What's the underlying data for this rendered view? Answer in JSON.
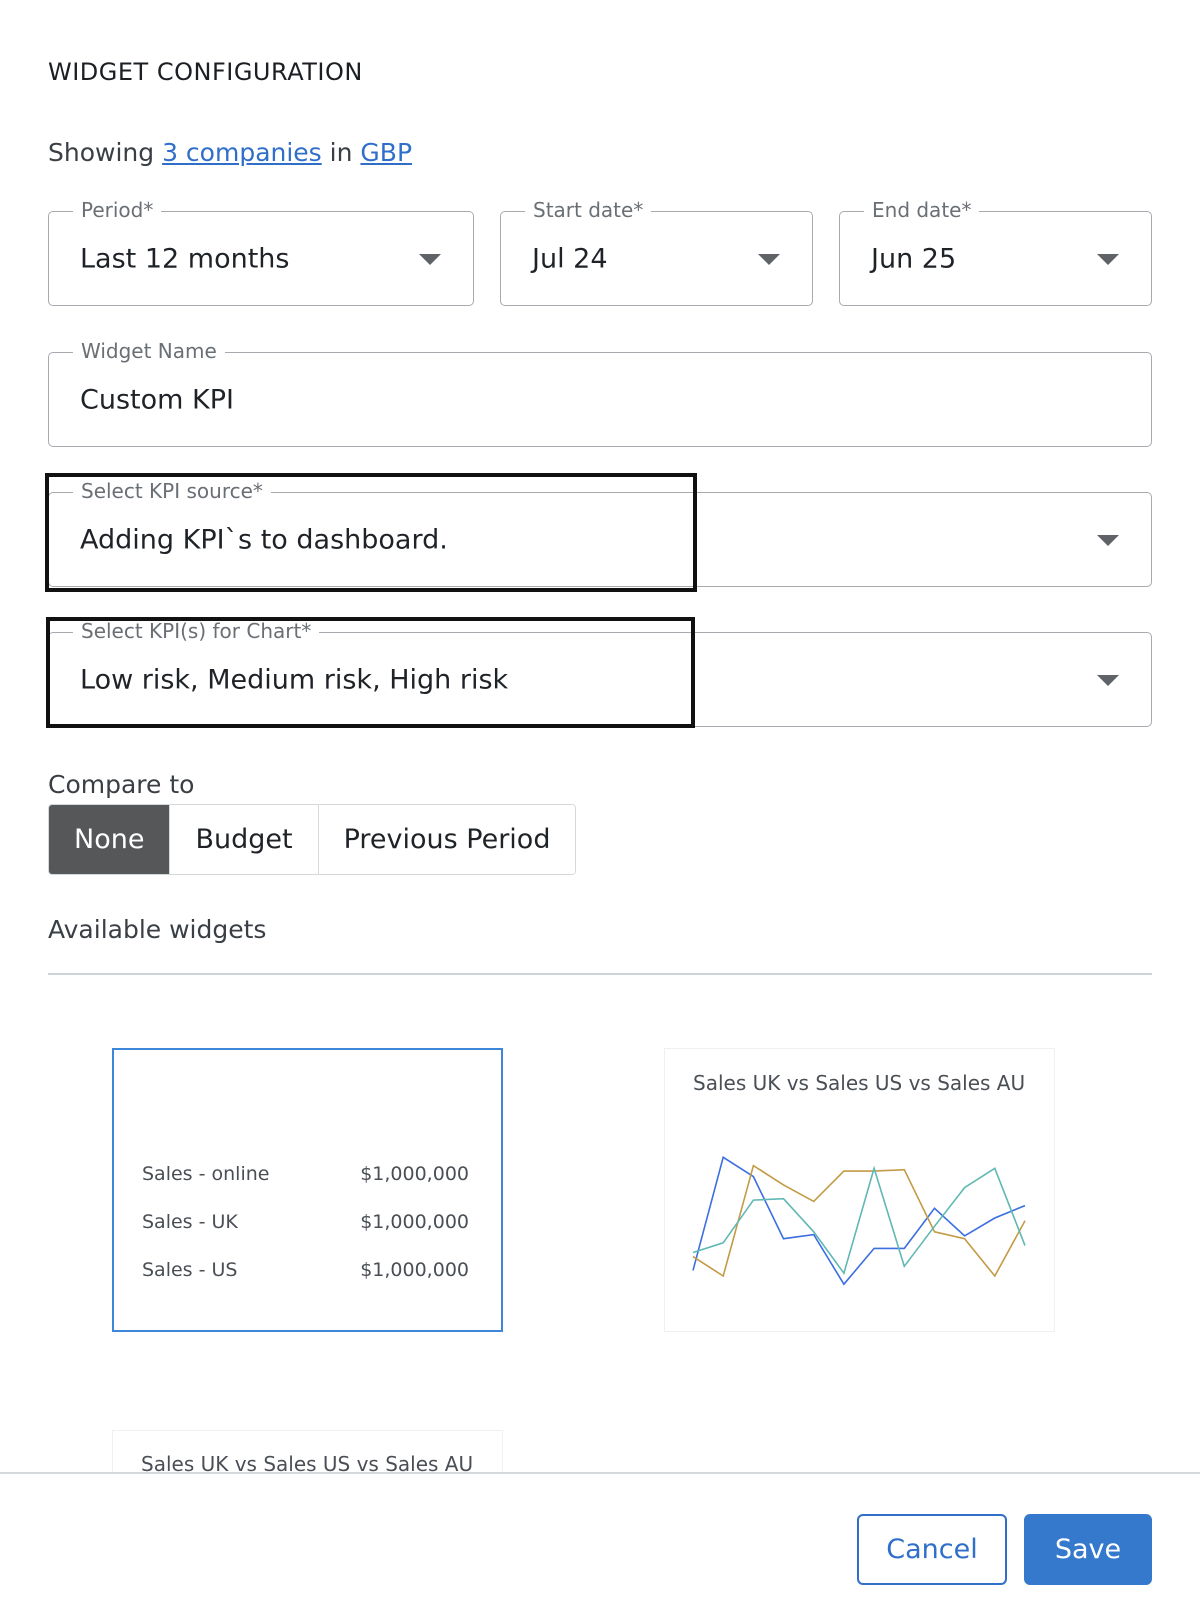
{
  "header": {
    "title": "WIDGET CONFIGURATION",
    "showing_prefix": "Showing",
    "companies_link": "3 companies",
    "showing_mid": "in",
    "currency_link": "GBP"
  },
  "fields": {
    "period": {
      "label": "Period*",
      "value": "Last 12 months"
    },
    "start_date": {
      "label": "Start date*",
      "value": "Jul 24"
    },
    "end_date": {
      "label": "End date*",
      "value": "Jun 25"
    },
    "widget_name": {
      "label": "Widget Name",
      "value": "Custom KPI"
    },
    "kpi_source": {
      "label": "Select KPI source*",
      "value": "Adding KPI`s to dashboard."
    },
    "kpis_for_chart": {
      "label": "Select KPI(s) for Chart*",
      "value": "Low risk, Medium risk, High risk"
    }
  },
  "compare": {
    "label": "Compare to",
    "options": [
      "None",
      "Budget",
      "Previous Period"
    ],
    "selected": "None"
  },
  "available": {
    "label": "Available widgets",
    "kpi_card": {
      "rows": [
        {
          "name": "Sales - online",
          "value": "$1,000,000"
        },
        {
          "name": "Sales - UK",
          "value": "$1,000,000"
        },
        {
          "name": "Sales - US",
          "value": "$1,000,000"
        }
      ]
    },
    "line_card_title": "Sales UK vs Sales US vs Sales AU",
    "bottom_card_title": "Sales UK vs Sales US vs Sales AU"
  },
  "chart_data": {
    "type": "line",
    "title": "Sales UK vs Sales US vs Sales AU",
    "x": [
      1,
      2,
      3,
      4,
      5,
      6,
      7,
      8,
      9,
      10,
      11,
      12
    ],
    "ylim": [
      0,
      100
    ],
    "series": [
      {
        "color": "#3b6fe0",
        "values": [
          12,
          94,
          80,
          35,
          38,
          2,
          28,
          28,
          57,
          37,
          50,
          59
        ]
      },
      {
        "color": "#c39a45",
        "values": [
          22,
          8,
          88,
          74,
          62,
          84,
          84,
          85,
          40,
          35,
          8,
          48
        ]
      },
      {
        "color": "#5fb8b4",
        "values": [
          25,
          32,
          63,
          64,
          40,
          10,
          86,
          15,
          44,
          72,
          86,
          30
        ]
      }
    ]
  },
  "footer": {
    "cancel_label": "Cancel",
    "save_label": "Save"
  }
}
